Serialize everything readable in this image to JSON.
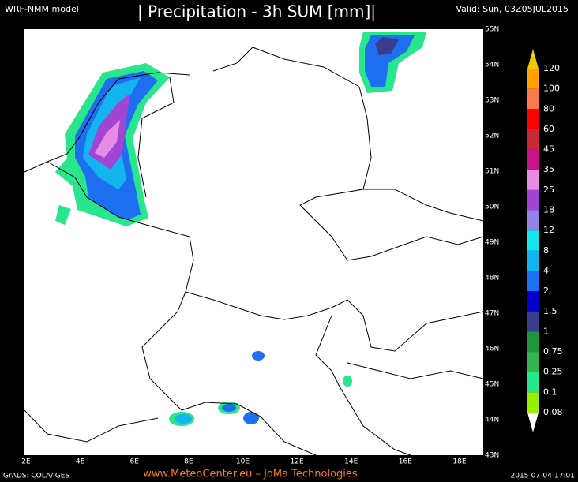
{
  "header": {
    "model": "WRF-NMM model",
    "title": "| Precipitation - 3h SUM [mm]|",
    "valid": "Valid: Sun, 03Z05JUL2015"
  },
  "map": {
    "lat_labels": [
      "55N",
      "54N",
      "53N",
      "52N",
      "51N",
      "50N",
      "49N",
      "48N",
      "47N",
      "46N",
      "45N",
      "44N",
      "43N"
    ],
    "lon_labels": [
      "2E",
      "4E",
      "6E",
      "8E",
      "10E",
      "12E",
      "14E",
      "16E",
      "18E"
    ]
  },
  "colorbar": {
    "labels": [
      "120",
      "100",
      "80",
      "60",
      "45",
      "35",
      "25",
      "18",
      "12",
      "8",
      "4",
      "2",
      "1.5",
      "1",
      "0.75",
      "0.25",
      "0.1",
      "0.08"
    ],
    "colors": [
      "#f0c800",
      "#ffa000",
      "#ff7850",
      "#ff0000",
      "#c8283c",
      "#c8148c",
      "#e68ce6",
      "#a046d2",
      "#9682e6",
      "#14e6f0",
      "#14b4f0",
      "#1e6ef0",
      "#0000c8",
      "#3c3c8c",
      "#1e963c",
      "#32b450",
      "#28e68c",
      "#96f000",
      "#ffffff"
    ]
  },
  "footer": {
    "left": "GrADS: COLA/IGES",
    "center": "www.MeteoCenter.eu  –  JoMa Technologies",
    "right": "2015-07-04-17:01"
  }
}
